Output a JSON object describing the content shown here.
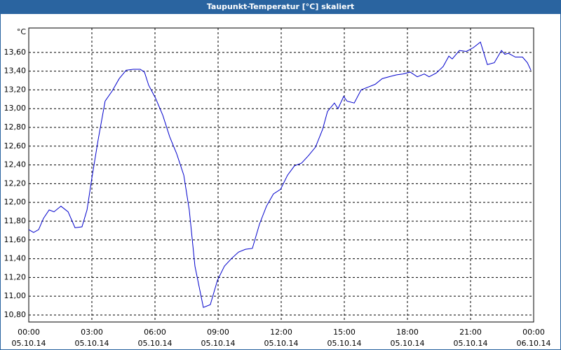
{
  "chart_data": {
    "type": "line",
    "title": "Taupunkt-Temperatur [°C] skaliert",
    "y_label": "°C",
    "x": [
      0,
      0.23,
      0.47,
      0.7,
      0.97,
      1.2,
      1.53,
      1.87,
      2.2,
      2.53,
      2.77,
      3,
      3.3,
      3.63,
      3.97,
      4.3,
      4.63,
      4.97,
      5.3,
      5.5,
      5.7,
      6.03,
      6.37,
      6.7,
      7.03,
      7.37,
      7.63,
      7.9,
      8.3,
      8.63,
      8.97,
      9.3,
      9.63,
      9.97,
      10.3,
      10.63,
      10.97,
      11.3,
      11.63,
      11.97,
      12.3,
      12.63,
      12.97,
      13.3,
      13.63,
      13.97,
      14.2,
      14.53,
      14.7,
      14.97,
      15.13,
      15.47,
      15.8,
      16.13,
      16.47,
      16.8,
      17.13,
      17.47,
      17.8,
      18.13,
      18.47,
      18.8,
      19.03,
      19.37,
      19.7,
      19.97,
      20.13,
      20.47,
      20.8,
      21.13,
      21.47,
      21.8,
      22.13,
      22.47,
      22.63,
      22.8,
      23.13,
      23.47,
      23.7,
      23.87
    ],
    "series": [
      {
        "color": "#0000cc",
        "values": [
          11.71,
          11.68,
          11.71,
          11.83,
          11.92,
          11.9,
          11.96,
          11.9,
          11.73,
          11.74,
          11.92,
          12.26,
          12.67,
          13.08,
          13.19,
          13.32,
          13.41,
          13.42,
          13.42,
          13.39,
          13.25,
          13.11,
          12.93,
          12.7,
          12.52,
          12.29,
          11.92,
          11.32,
          10.88,
          10.91,
          11.17,
          11.32,
          11.4,
          11.47,
          11.5,
          11.51,
          11.77,
          11.96,
          12.09,
          12.14,
          12.29,
          12.39,
          12.42,
          12.5,
          12.59,
          12.78,
          12.97,
          13.06,
          13.0,
          13.13,
          13.08,
          13.06,
          13.2,
          13.23,
          13.26,
          13.32,
          13.34,
          13.36,
          13.37,
          13.39,
          13.34,
          13.37,
          13.34,
          13.38,
          13.45,
          13.56,
          13.53,
          13.62,
          13.61,
          13.65,
          13.71,
          13.47,
          13.49,
          13.62,
          13.58,
          13.59,
          13.55,
          13.55,
          13.49,
          13.41
        ]
      }
    ],
    "xlim": [
      0,
      24
    ],
    "xticks": [
      {
        "value": 0,
        "label": [
          "00:00",
          "05.10.14"
        ]
      },
      {
        "value": 3,
        "label": [
          "03:00",
          "05.10.14"
        ]
      },
      {
        "value": 6,
        "label": [
          "06:00",
          "05.10.14"
        ]
      },
      {
        "value": 9,
        "label": [
          "09:00",
          "05.10.14"
        ]
      },
      {
        "value": 12,
        "label": [
          "12:00",
          "05.10.14"
        ]
      },
      {
        "value": 15,
        "label": [
          "15:00",
          "05.10.14"
        ]
      },
      {
        "value": 18,
        "label": [
          "18:00",
          "05.10.14"
        ]
      },
      {
        "value": 21,
        "label": [
          "21:00",
          "05.10.14"
        ]
      },
      {
        "value": 24,
        "label": [
          "00:00",
          "06.10.14"
        ]
      }
    ],
    "ylim": [
      10.725,
      13.86
    ],
    "yticks": [
      {
        "value": 10.8,
        "label": "10,80"
      },
      {
        "value": 11.0,
        "label": "11,00"
      },
      {
        "value": 11.2,
        "label": "11,20"
      },
      {
        "value": 11.4,
        "label": "11,40"
      },
      {
        "value": 11.6,
        "label": "11,60"
      },
      {
        "value": 11.8,
        "label": "11,80"
      },
      {
        "value": 12.0,
        "label": "12,00"
      },
      {
        "value": 12.2,
        "label": "12,20"
      },
      {
        "value": 12.4,
        "label": "12,40"
      },
      {
        "value": 12.6,
        "label": "12,60"
      },
      {
        "value": 12.8,
        "label": "12,80"
      },
      {
        "value": 13.0,
        "label": "13,00"
      },
      {
        "value": 13.2,
        "label": "13,20"
      },
      {
        "value": 13.4,
        "label": "13,40"
      },
      {
        "value": 13.6,
        "label": "13,60"
      }
    ],
    "grid": true
  }
}
